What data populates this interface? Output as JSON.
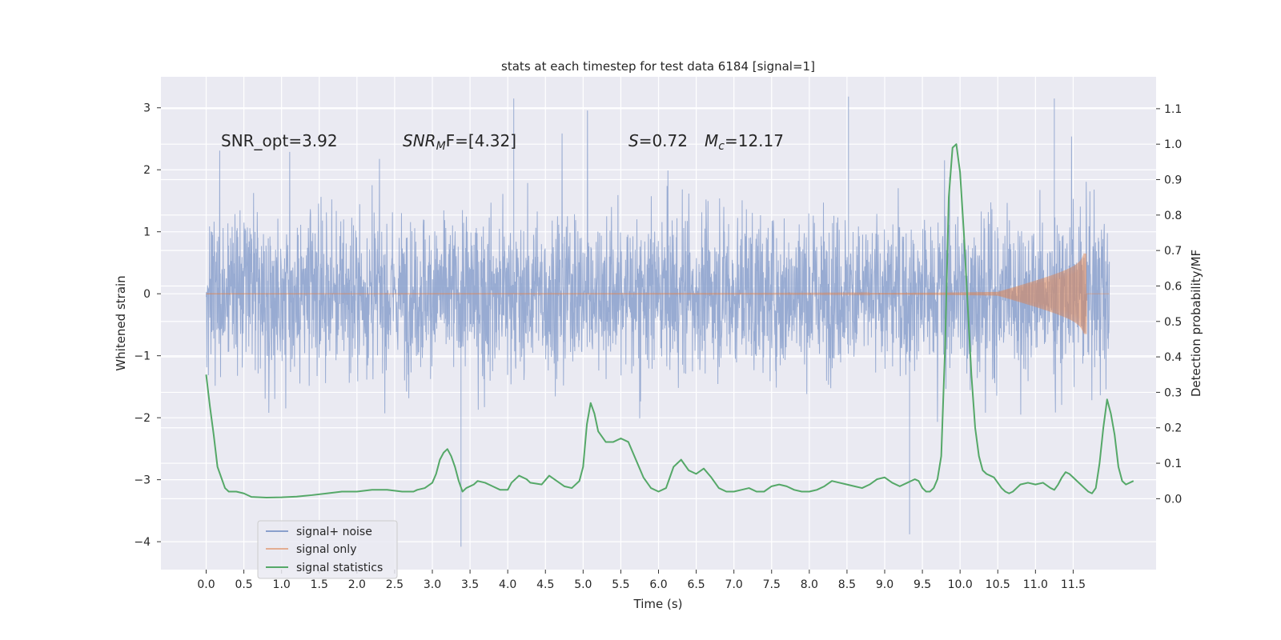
{
  "chart_data": {
    "type": "line",
    "title": "stats at each timestep for test data 6184 [signal=1]",
    "xlabel": "Time (s)",
    "ylabel": "Whitened strain",
    "ylabel_right": "Detection probability/MF",
    "xlim": [
      -0.6,
      12.6
    ],
    "ylim": [
      -4.45,
      3.5
    ],
    "ylim_right": [
      -0.2,
      1.19
    ],
    "grid": true,
    "x_ticks": [
      "0.0",
      "0.5",
      "1.0",
      "1.5",
      "2.0",
      "2.5",
      "3.0",
      "3.5",
      "4.0",
      "4.5",
      "5.0",
      "5.5",
      "6.0",
      "6.5",
      "7.0",
      "7.5",
      "8.0",
      "8.5",
      "9.0",
      "9.5",
      "10.0",
      "10.5",
      "11.0",
      "11.5"
    ],
    "y_ticks_left": [
      "3",
      "2",
      "1",
      "0",
      "−1",
      "−2",
      "−3",
      "−4"
    ],
    "y_ticks_right": [
      "1.1",
      "1.0",
      "0.9",
      "0.8",
      "0.7",
      "0.6",
      "0.5",
      "0.4",
      "0.3",
      "0.2",
      "0.1",
      "0.0"
    ],
    "annotations": {
      "snr_opt": "SNR_opt=3.92",
      "snr_mf_main": "SNR",
      "snr_mf_sub": "M",
      "snr_mf_rest": "F=[4.32]",
      "s_main": "S",
      "s_rest": "=0.72",
      "mc_main": "M",
      "mc_sub": "c",
      "mc_rest": "=12.17"
    },
    "legend_position": "lower-left",
    "series": [
      {
        "name": "signal+ noise",
        "color": "#8aa0cc",
        "axis": "left",
        "t_range": [
          0.0,
          11.98
        ],
        "envelope_core": [
          -1.3,
          1.25
        ],
        "extremes": [
          -4.08,
          3.18
        ]
      },
      {
        "name": "signal only",
        "color": "#dd8452",
        "axis": "left",
        "chirp_end_time": 11.68,
        "chirp_peak_amplitude": 0.65
      },
      {
        "name": "signal statistics",
        "color": "#55a868",
        "axis": "right",
        "points": [
          [
            0.0,
            0.35
          ],
          [
            0.05,
            0.26
          ],
          [
            0.1,
            0.18
          ],
          [
            0.15,
            0.09
          ],
          [
            0.2,
            0.06
          ],
          [
            0.25,
            0.03
          ],
          [
            0.3,
            0.02
          ],
          [
            0.35,
            0.02
          ],
          [
            0.4,
            0.02
          ],
          [
            0.5,
            0.015
          ],
          [
            0.6,
            0.005
          ],
          [
            0.8,
            0.003
          ],
          [
            1.0,
            0.004
          ],
          [
            1.2,
            0.006
          ],
          [
            1.4,
            0.01
          ],
          [
            1.6,
            0.015
          ],
          [
            1.8,
            0.02
          ],
          [
            2.0,
            0.02
          ],
          [
            2.2,
            0.025
          ],
          [
            2.4,
            0.025
          ],
          [
            2.6,
            0.02
          ],
          [
            2.75,
            0.02
          ],
          [
            2.8,
            0.025
          ],
          [
            2.9,
            0.03
          ],
          [
            3.0,
            0.045
          ],
          [
            3.05,
            0.07
          ],
          [
            3.1,
            0.11
          ],
          [
            3.15,
            0.13
          ],
          [
            3.2,
            0.14
          ],
          [
            3.25,
            0.12
          ],
          [
            3.3,
            0.09
          ],
          [
            3.35,
            0.05
          ],
          [
            3.4,
            0.02
          ],
          [
            3.45,
            0.03
          ],
          [
            3.55,
            0.04
          ],
          [
            3.6,
            0.05
          ],
          [
            3.7,
            0.045
          ],
          [
            3.8,
            0.035
          ],
          [
            3.9,
            0.025
          ],
          [
            4.0,
            0.025
          ],
          [
            4.05,
            0.045
          ],
          [
            4.15,
            0.065
          ],
          [
            4.25,
            0.055
          ],
          [
            4.3,
            0.045
          ],
          [
            4.45,
            0.04
          ],
          [
            4.55,
            0.065
          ],
          [
            4.65,
            0.05
          ],
          [
            4.75,
            0.035
          ],
          [
            4.85,
            0.03
          ],
          [
            4.95,
            0.05
          ],
          [
            5.0,
            0.09
          ],
          [
            5.05,
            0.21
          ],
          [
            5.1,
            0.27
          ],
          [
            5.15,
            0.24
          ],
          [
            5.2,
            0.19
          ],
          [
            5.3,
            0.16
          ],
          [
            5.4,
            0.16
          ],
          [
            5.5,
            0.17
          ],
          [
            5.6,
            0.16
          ],
          [
            5.7,
            0.11
          ],
          [
            5.8,
            0.06
          ],
          [
            5.9,
            0.03
          ],
          [
            6.0,
            0.02
          ],
          [
            6.1,
            0.03
          ],
          [
            6.2,
            0.09
          ],
          [
            6.3,
            0.11
          ],
          [
            6.4,
            0.08
          ],
          [
            6.5,
            0.07
          ],
          [
            6.6,
            0.085
          ],
          [
            6.7,
            0.06
          ],
          [
            6.8,
            0.03
          ],
          [
            6.9,
            0.02
          ],
          [
            7.0,
            0.02
          ],
          [
            7.1,
            0.025
          ],
          [
            7.2,
            0.03
          ],
          [
            7.3,
            0.02
          ],
          [
            7.4,
            0.02
          ],
          [
            7.5,
            0.035
          ],
          [
            7.6,
            0.04
          ],
          [
            7.7,
            0.035
          ],
          [
            7.8,
            0.025
          ],
          [
            7.9,
            0.02
          ],
          [
            8.0,
            0.02
          ],
          [
            8.1,
            0.025
          ],
          [
            8.2,
            0.035
          ],
          [
            8.3,
            0.05
          ],
          [
            8.4,
            0.045
          ],
          [
            8.5,
            0.04
          ],
          [
            8.6,
            0.035
          ],
          [
            8.7,
            0.03
          ],
          [
            8.8,
            0.04
          ],
          [
            8.9,
            0.055
          ],
          [
            9.0,
            0.06
          ],
          [
            9.1,
            0.045
          ],
          [
            9.2,
            0.035
          ],
          [
            9.3,
            0.045
          ],
          [
            9.4,
            0.055
          ],
          [
            9.45,
            0.05
          ],
          [
            9.5,
            0.03
          ],
          [
            9.55,
            0.02
          ],
          [
            9.6,
            0.02
          ],
          [
            9.65,
            0.03
          ],
          [
            9.7,
            0.055
          ],
          [
            9.75,
            0.12
          ],
          [
            9.8,
            0.42
          ],
          [
            9.85,
            0.85
          ],
          [
            9.9,
            0.99
          ],
          [
            9.95,
            1.0
          ],
          [
            10.0,
            0.92
          ],
          [
            10.05,
            0.75
          ],
          [
            10.1,
            0.55
          ],
          [
            10.15,
            0.35
          ],
          [
            10.2,
            0.2
          ],
          [
            10.25,
            0.12
          ],
          [
            10.3,
            0.08
          ],
          [
            10.35,
            0.07
          ],
          [
            10.4,
            0.065
          ],
          [
            10.45,
            0.06
          ],
          [
            10.5,
            0.045
          ],
          [
            10.55,
            0.03
          ],
          [
            10.6,
            0.02
          ],
          [
            10.65,
            0.015
          ],
          [
            10.7,
            0.02
          ],
          [
            10.75,
            0.03
          ],
          [
            10.8,
            0.04
          ],
          [
            10.9,
            0.045
          ],
          [
            11.0,
            0.04
          ],
          [
            11.1,
            0.045
          ],
          [
            11.2,
            0.03
          ],
          [
            11.25,
            0.025
          ],
          [
            11.3,
            0.04
          ],
          [
            11.35,
            0.06
          ],
          [
            11.4,
            0.075
          ],
          [
            11.45,
            0.07
          ],
          [
            11.5,
            0.06
          ],
          [
            11.55,
            0.05
          ],
          [
            11.6,
            0.04
          ],
          [
            11.65,
            0.03
          ],
          [
            11.7,
            0.02
          ],
          [
            11.75,
            0.015
          ],
          [
            11.8,
            0.03
          ],
          [
            11.85,
            0.1
          ],
          [
            11.9,
            0.2
          ],
          [
            11.95,
            0.28
          ],
          [
            12.0,
            0.24
          ],
          [
            12.05,
            0.18
          ],
          [
            12.1,
            0.09
          ],
          [
            12.15,
            0.05
          ],
          [
            12.2,
            0.04
          ],
          [
            12.3,
            0.05
          ]
        ]
      }
    ]
  }
}
